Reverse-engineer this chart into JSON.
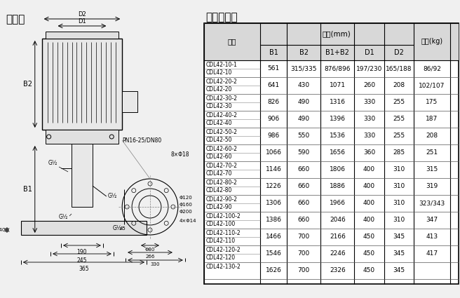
{
  "title_left": "安装图",
  "title_right": "尺寸和重量",
  "table_header_row1": [
    "型号",
    "尺寸(mm)",
    "重量(kg)"
  ],
  "table_header_row2": [
    "",
    "B1",
    "B2",
    "B1+B2",
    "D1",
    "D2",
    ""
  ],
  "table_data": [
    [
      "CDL42-10-1",
      "CDL42-10",
      "561",
      "315/335",
      "876/896",
      "197/230",
      "165/188",
      "86/92"
    ],
    [
      "CDL42-20-2",
      "CDL42-20",
      "641",
      "430",
      "1071",
      "260",
      "208",
      "102/107"
    ],
    [
      "CDL42-30-2",
      "CDL42-30",
      "826",
      "490",
      "1316",
      "330",
      "255",
      "175"
    ],
    [
      "CDL42-40-2",
      "CDL42-40",
      "906",
      "490",
      "1396",
      "330",
      "255",
      "187"
    ],
    [
      "CDL42-50-2",
      "CDL42-50",
      "986",
      "550",
      "1536",
      "330",
      "255",
      "208"
    ],
    [
      "CDL42-60-2",
      "CDL42-60",
      "1066",
      "590",
      "1656",
      "360",
      "285",
      "251"
    ],
    [
      "CDL42-70-2",
      "CDL42-70",
      "1146",
      "660",
      "1806",
      "400",
      "310",
      "315"
    ],
    [
      "CDL42-80-2",
      "CDL42-80",
      "1226",
      "660",
      "1886",
      "400",
      "310",
      "319"
    ],
    [
      "CDL42-90-2",
      "CDL42-90",
      "1306",
      "660",
      "1966",
      "400",
      "310",
      "323/343"
    ],
    [
      "CDL42-100-2",
      "CDL42-100",
      "1386",
      "660",
      "2046",
      "400",
      "310",
      "347"
    ],
    [
      "CDL42-110-2",
      "CDL42-110",
      "1466",
      "700",
      "2166",
      "450",
      "345",
      "413"
    ],
    [
      "CDL42-120-2",
      "CDL42-120",
      "1546",
      "700",
      "2246",
      "450",
      "345",
      "417"
    ],
    [
      "CDL42-130-2",
      "",
      "1626",
      "700",
      "2326",
      "450",
      "345",
      ""
    ]
  ],
  "bg_color": "#f0f0f0",
  "table_bg": "#ffffff",
  "header_bg": "#d0d0d0"
}
